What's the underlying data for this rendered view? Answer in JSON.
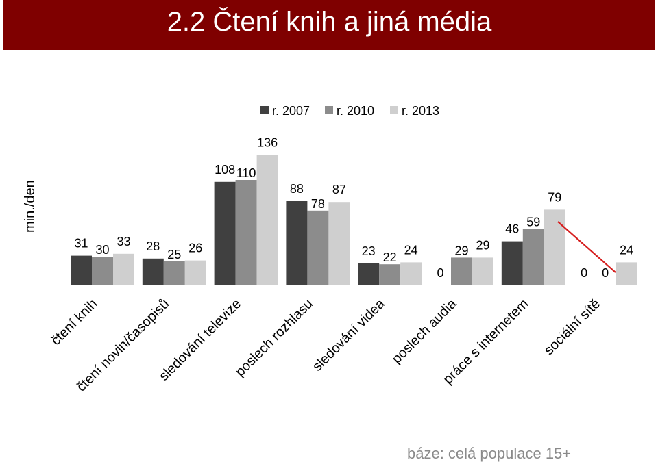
{
  "title": "2.2 Čtení knih a jiná média",
  "footer_note": "báze: celá populace 15+",
  "colors": {
    "title_bg": "#7f0000",
    "s2007": "#404040",
    "s2010": "#8c8c8c",
    "s2013": "#cfcfcf",
    "annotation_line": "#d62020"
  },
  "chart_data": {
    "type": "bar",
    "ylabel": "min./den",
    "categories": [
      "čtení knih",
      "čtení novin/časopisů",
      "sledování televize",
      "poslech rozhlasu",
      "sledování videa",
      "poslech audia",
      "práce s internetem",
      "sociální sítě"
    ],
    "series": [
      {
        "name": "r. 2007",
        "values": [
          31,
          28,
          108,
          88,
          23,
          0,
          46,
          0
        ]
      },
      {
        "name": "r. 2010",
        "values": [
          30,
          25,
          110,
          78,
          22,
          29,
          59,
          0
        ]
      },
      {
        "name": "r. 2013",
        "values": [
          33,
          26,
          136,
          87,
          24,
          29,
          79,
          24
        ]
      }
    ],
    "legend": "top",
    "grid": false
  }
}
